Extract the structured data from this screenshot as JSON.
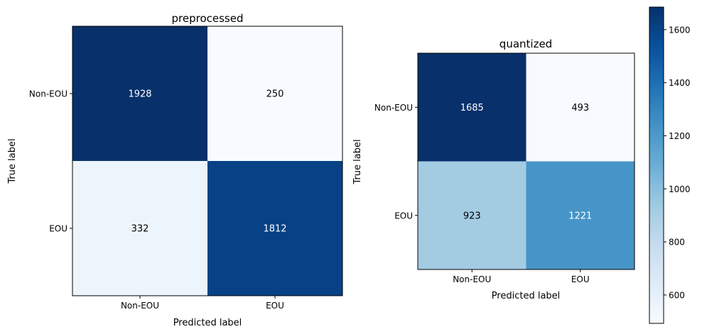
{
  "chart_data": [
    {
      "type": "heatmap",
      "title": "preprocessed",
      "xlabel": "Predicted label",
      "ylabel": "True label",
      "x_categories": [
        "Non-EOU",
        "EOU"
      ],
      "y_categories": [
        "Non-EOU",
        "EOU"
      ],
      "values": [
        [
          1928,
          250
        ],
        [
          332,
          1812
        ]
      ],
      "colormap": "Blues",
      "colorbar": false
    },
    {
      "type": "heatmap",
      "title": "quantized",
      "xlabel": "Predicted label",
      "ylabel": "True label",
      "x_categories": [
        "Non-EOU",
        "EOU"
      ],
      "y_categories": [
        "Non-EOU",
        "EOU"
      ],
      "values": [
        [
          1685,
          493
        ],
        [
          923,
          1221
        ]
      ],
      "colormap": "Blues",
      "colorbar": true,
      "colorbar_range": [
        493,
        1685
      ],
      "colorbar_ticks": [
        600,
        800,
        1000,
        1200,
        1400,
        1600
      ]
    }
  ]
}
